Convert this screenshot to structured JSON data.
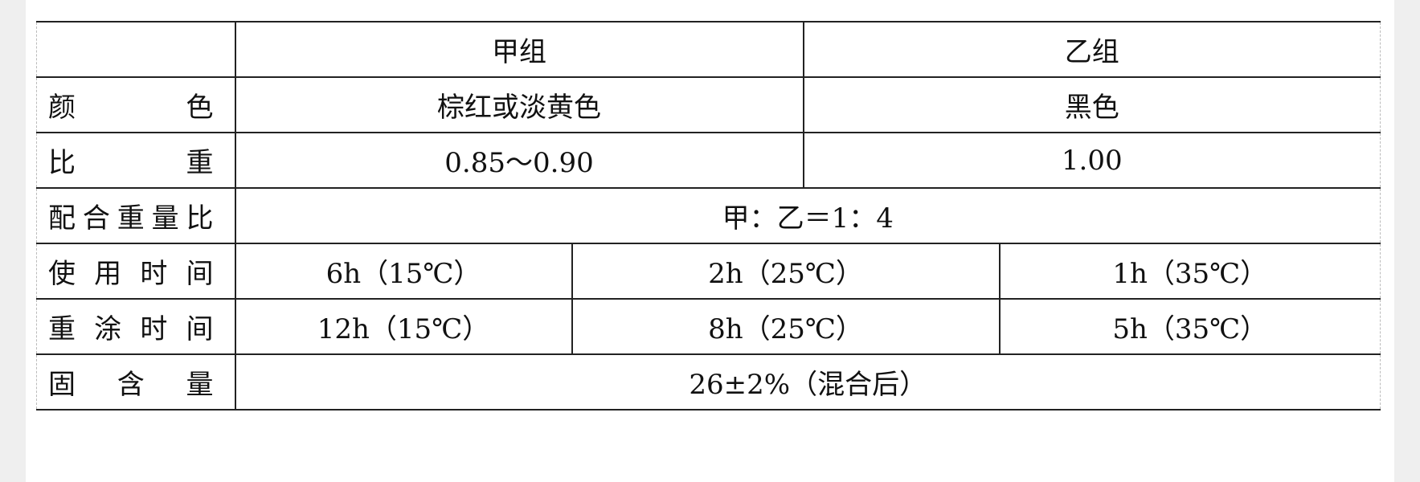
{
  "table": {
    "header": {
      "corner": "",
      "group_a": "甲组",
      "group_b": "乙组"
    },
    "color": {
      "label": "颜　　色",
      "a": "棕红或淡黄色",
      "b": "黑色"
    },
    "specific_gravity": {
      "label": "比　　重",
      "a": "0.85～0.90",
      "b": "1.00"
    },
    "mix_ratio": {
      "label": "配合重量比",
      "value": "甲：乙＝1：4"
    },
    "pot_life": {
      "label": "使用时间",
      "values": [
        "6h（15℃）",
        "2h（25℃）",
        "1h（35℃）"
      ]
    },
    "recoat_time": {
      "label": "重涂时间",
      "values": [
        "12h（15℃）",
        "8h（25℃）",
        "5h（35℃）"
      ]
    },
    "solids": {
      "label": "固 含 量",
      "value": "26±2%（混合后）"
    }
  }
}
